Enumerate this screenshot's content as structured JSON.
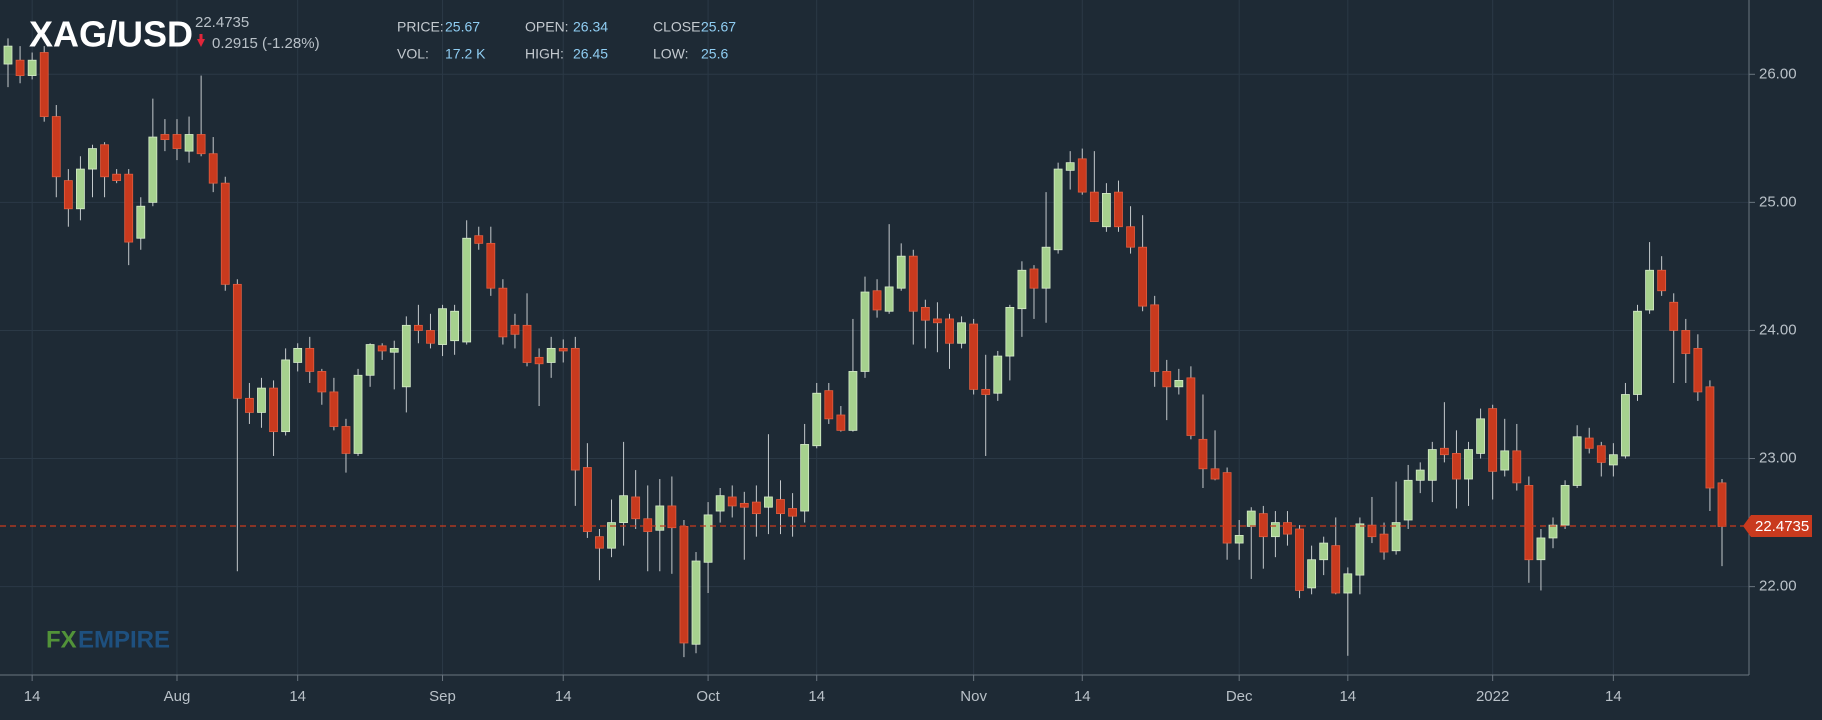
{
  "chart_data": {
    "type": "candlestick",
    "title": "XAG/USD",
    "last_price": 22.4735,
    "change": "0.2915 (-1.28%)",
    "stats": {
      "price_label": "PRICE:",
      "price": 25.67,
      "open_label": "OPEN:",
      "open": 26.34,
      "close_label": "CLOSE:",
      "close": 25.67,
      "vol_label": "VOL:",
      "vol": "17.2 K",
      "high_label": "HIGH:",
      "high": 26.45,
      "low_label": "LOW:",
      "low": 25.6
    },
    "logo": {
      "a": "FX",
      "b": "EMPIRE"
    },
    "up_color": "#a6d18e",
    "down_color": "#c93a1e",
    "ylim": [
      21.31,
      26.58
    ],
    "yticks": [
      {
        "value": 22,
        "label": "22.00"
      },
      {
        "value": 23,
        "label": "23.00"
      },
      {
        "value": 24,
        "label": "24.00"
      },
      {
        "value": 25,
        "label": "25.00"
      },
      {
        "value": 26,
        "label": "26.00"
      }
    ],
    "grid": true,
    "categories": [
      null,
      null,
      "14",
      null,
      null,
      null,
      null,
      null,
      null,
      null,
      null,
      null,
      null,
      null,
      "Aug",
      null,
      null,
      null,
      null,
      null,
      null,
      null,
      null,
      null,
      "14",
      null,
      null,
      null,
      null,
      null,
      null,
      null,
      null,
      null,
      null,
      null,
      "Sep",
      null,
      null,
      null,
      null,
      null,
      null,
      null,
      null,
      null,
      "14",
      null,
      null,
      null,
      null,
      null,
      null,
      null,
      null,
      null,
      null,
      null,
      "Oct",
      null,
      null,
      null,
      null,
      null,
      null,
      null,
      null,
      "14",
      null,
      null,
      null,
      null,
      null,
      null,
      null,
      null,
      null,
      null,
      null,
      null,
      "Nov",
      null,
      null,
      null,
      null,
      null,
      null,
      null,
      null,
      "14",
      null,
      null,
      null,
      null,
      null,
      null,
      null,
      null,
      null,
      null,
      null,
      null,
      "Dec",
      null,
      null,
      null,
      null,
      null,
      null,
      null,
      null,
      "14",
      null,
      null,
      null,
      null,
      null,
      null,
      null,
      null,
      null,
      null,
      null,
      "2022",
      null,
      null,
      null,
      null,
      null,
      null,
      null,
      null,
      null,
      "14",
      null,
      null,
      null,
      null,
      null,
      null,
      null,
      null,
      null
    ],
    "ohlc": [
      [
        26.08,
        26.28,
        25.9,
        26.22
      ],
      [
        26.11,
        26.22,
        25.93,
        25.99
      ],
      [
        25.99,
        26.17,
        25.96,
        26.11
      ],
      [
        26.17,
        26.22,
        25.63,
        25.67
      ],
      [
        25.67,
        25.76,
        25.04,
        25.2
      ],
      [
        25.17,
        25.26,
        24.81,
        24.95
      ],
      [
        24.95,
        25.36,
        24.86,
        25.26
      ],
      [
        25.26,
        25.45,
        25.04,
        25.42
      ],
      [
        25.45,
        25.47,
        25.04,
        25.2
      ],
      [
        25.22,
        25.26,
        25.15,
        25.17
      ],
      [
        25.22,
        25.26,
        24.51,
        24.69
      ],
      [
        24.72,
        25.04,
        24.63,
        24.97
      ],
      [
        25.0,
        25.81,
        24.97,
        25.51
      ],
      [
        25.53,
        25.65,
        25.4,
        25.49
      ],
      [
        25.53,
        25.65,
        25.33,
        25.42
      ],
      [
        25.4,
        25.67,
        25.31,
        25.53
      ],
      [
        25.53,
        25.99,
        25.36,
        25.38
      ],
      [
        25.38,
        25.51,
        25.08,
        25.15
      ],
      [
        25.15,
        25.2,
        24.31,
        24.36
      ],
      [
        24.36,
        24.4,
        22.12,
        23.47
      ],
      [
        23.47,
        23.59,
        23.27,
        23.36
      ],
      [
        23.36,
        23.63,
        23.24,
        23.55
      ],
      [
        23.55,
        23.61,
        23.02,
        23.21
      ],
      [
        23.21,
        23.86,
        23.18,
        23.77
      ],
      [
        23.75,
        23.9,
        23.68,
        23.86
      ],
      [
        23.86,
        23.95,
        23.59,
        23.68
      ],
      [
        23.68,
        23.7,
        23.42,
        23.52
      ],
      [
        23.52,
        23.63,
        23.22,
        23.25
      ],
      [
        23.25,
        23.31,
        22.89,
        23.04
      ],
      [
        23.04,
        23.7,
        23.02,
        23.65
      ],
      [
        23.65,
        23.9,
        23.56,
        23.89
      ],
      [
        23.88,
        23.9,
        23.77,
        23.84
      ],
      [
        23.83,
        23.92,
        23.54,
        23.86
      ],
      [
        23.56,
        24.11,
        23.36,
        24.04
      ],
      [
        24.04,
        24.2,
        23.9,
        24.0
      ],
      [
        24.0,
        24.13,
        23.86,
        23.9
      ],
      [
        23.89,
        24.2,
        23.8,
        24.17
      ],
      [
        23.92,
        24.2,
        23.81,
        24.15
      ],
      [
        23.91,
        24.86,
        23.89,
        24.72
      ],
      [
        24.74,
        24.81,
        24.63,
        24.68
      ],
      [
        24.68,
        24.81,
        24.27,
        24.33
      ],
      [
        24.33,
        24.4,
        23.89,
        23.95
      ],
      [
        24.04,
        24.13,
        23.86,
        23.97
      ],
      [
        24.04,
        24.29,
        23.72,
        23.75
      ],
      [
        23.79,
        23.86,
        23.41,
        23.74
      ],
      [
        23.75,
        23.95,
        23.63,
        23.86
      ],
      [
        23.86,
        23.93,
        23.75,
        23.84
      ],
      [
        23.86,
        23.95,
        22.63,
        22.91
      ],
      [
        22.93,
        23.12,
        22.38,
        22.43
      ],
      [
        22.39,
        22.45,
        22.05,
        22.3
      ],
      [
        22.3,
        22.68,
        22.23,
        22.5
      ],
      [
        22.5,
        23.13,
        22.32,
        22.71
      ],
      [
        22.7,
        22.91,
        22.45,
        22.53
      ],
      [
        22.53,
        22.79,
        22.12,
        22.43
      ],
      [
        22.44,
        22.84,
        22.12,
        22.63
      ],
      [
        22.63,
        22.86,
        22.1,
        22.46
      ],
      [
        22.47,
        22.52,
        21.45,
        21.56
      ],
      [
        21.55,
        22.27,
        21.48,
        22.2
      ],
      [
        22.19,
        22.66,
        21.95,
        22.56
      ],
      [
        22.59,
        22.77,
        22.5,
        22.71
      ],
      [
        22.7,
        22.79,
        22.54,
        22.63
      ],
      [
        22.65,
        22.74,
        22.21,
        22.62
      ],
      [
        22.66,
        22.79,
        22.39,
        22.57
      ],
      [
        22.62,
        23.19,
        22.41,
        22.7
      ],
      [
        22.68,
        22.83,
        22.41,
        22.57
      ],
      [
        22.61,
        22.73,
        22.39,
        22.55
      ],
      [
        22.59,
        23.27,
        22.5,
        23.11
      ],
      [
        23.1,
        23.59,
        23.08,
        23.51
      ],
      [
        23.53,
        23.59,
        23.27,
        23.31
      ],
      [
        23.34,
        23.41,
        23.21,
        23.22
      ],
      [
        23.22,
        24.09,
        23.21,
        23.68
      ],
      [
        23.68,
        24.42,
        23.63,
        24.3
      ],
      [
        24.31,
        24.4,
        24.1,
        24.16
      ],
      [
        24.15,
        24.83,
        24.13,
        24.34
      ],
      [
        24.33,
        24.68,
        24.31,
        24.58
      ],
      [
        24.58,
        24.63,
        23.89,
        24.15
      ],
      [
        24.18,
        24.24,
        23.86,
        24.08
      ],
      [
        24.09,
        24.22,
        23.83,
        24.06
      ],
      [
        24.09,
        24.13,
        23.7,
        23.9
      ],
      [
        23.9,
        24.11,
        23.86,
        24.06
      ],
      [
        24.05,
        24.09,
        23.5,
        23.54
      ],
      [
        23.54,
        23.81,
        23.02,
        23.5
      ],
      [
        23.51,
        23.84,
        23.45,
        23.8
      ],
      [
        23.8,
        24.2,
        23.61,
        24.18
      ],
      [
        24.17,
        24.54,
        23.95,
        24.47
      ],
      [
        24.48,
        24.51,
        24.09,
        24.33
      ],
      [
        24.33,
        25.08,
        24.06,
        24.65
      ],
      [
        24.63,
        25.31,
        24.6,
        25.26
      ],
      [
        25.25,
        25.4,
        25.1,
        25.31
      ],
      [
        25.34,
        25.42,
        25.06,
        25.08
      ],
      [
        25.08,
        25.4,
        24.85,
        24.85
      ],
      [
        24.81,
        25.15,
        24.77,
        25.07
      ],
      [
        25.08,
        25.17,
        24.77,
        24.81
      ],
      [
        24.81,
        24.97,
        24.6,
        24.65
      ],
      [
        24.65,
        24.9,
        24.15,
        24.19
      ],
      [
        24.2,
        24.27,
        23.56,
        23.68
      ],
      [
        23.68,
        23.77,
        23.3,
        23.56
      ],
      [
        23.56,
        23.7,
        23.5,
        23.61
      ],
      [
        23.63,
        23.72,
        23.15,
        23.18
      ],
      [
        23.15,
        23.5,
        22.77,
        22.92
      ],
      [
        22.92,
        23.22,
        22.83,
        22.84
      ],
      [
        22.89,
        22.93,
        22.21,
        22.34
      ],
      [
        22.34,
        22.52,
        22.21,
        22.4
      ],
      [
        22.47,
        22.62,
        22.06,
        22.59
      ],
      [
        22.57,
        22.63,
        22.14,
        22.39
      ],
      [
        22.39,
        22.59,
        22.23,
        22.5
      ],
      [
        22.5,
        22.59,
        22.32,
        22.41
      ],
      [
        22.45,
        22.48,
        21.91,
        21.97
      ],
      [
        21.99,
        22.32,
        21.94,
        22.21
      ],
      [
        22.21,
        22.39,
        22.09,
        22.34
      ],
      [
        22.32,
        22.54,
        21.94,
        21.95
      ],
      [
        21.95,
        22.15,
        21.46,
        22.1
      ],
      [
        22.09,
        22.54,
        21.94,
        22.49
      ],
      [
        22.48,
        22.7,
        22.34,
        22.39
      ],
      [
        22.41,
        22.5,
        22.21,
        22.27
      ],
      [
        22.28,
        22.82,
        22.25,
        22.5
      ],
      [
        22.52,
        22.95,
        22.45,
        22.83
      ],
      [
        22.83,
        22.97,
        22.73,
        22.91
      ],
      [
        22.83,
        23.13,
        22.66,
        23.07
      ],
      [
        23.08,
        23.44,
        22.97,
        23.03
      ],
      [
        23.04,
        23.22,
        22.61,
        22.84
      ],
      [
        22.84,
        23.13,
        22.63,
        23.07
      ],
      [
        23.04,
        23.39,
        23.0,
        23.31
      ],
      [
        23.39,
        23.42,
        22.68,
        22.9
      ],
      [
        22.91,
        23.31,
        22.86,
        23.06
      ],
      [
        23.06,
        23.27,
        22.75,
        22.81
      ],
      [
        22.79,
        22.86,
        22.03,
        22.21
      ],
      [
        22.21,
        22.45,
        21.97,
        22.38
      ],
      [
        22.38,
        22.54,
        22.3,
        22.48
      ],
      [
        22.48,
        22.83,
        22.45,
        22.79
      ],
      [
        22.79,
        23.26,
        22.77,
        23.17
      ],
      [
        23.16,
        23.24,
        23.04,
        23.08
      ],
      [
        23.1,
        23.13,
        22.86,
        22.97
      ],
      [
        22.95,
        23.12,
        22.86,
        23.03
      ],
      [
        23.02,
        23.59,
        23.0,
        23.5
      ],
      [
        23.5,
        24.2,
        23.45,
        24.15
      ],
      [
        24.16,
        24.69,
        24.13,
        24.47
      ],
      [
        24.47,
        24.58,
        24.27,
        24.31
      ],
      [
        24.22,
        24.29,
        23.59,
        24.0
      ],
      [
        24.0,
        24.09,
        23.59,
        23.82
      ],
      [
        23.86,
        23.97,
        23.45,
        23.52
      ],
      [
        23.56,
        23.61,
        22.59,
        22.77
      ],
      [
        22.81,
        22.84,
        22.16,
        22.47
      ]
    ]
  }
}
